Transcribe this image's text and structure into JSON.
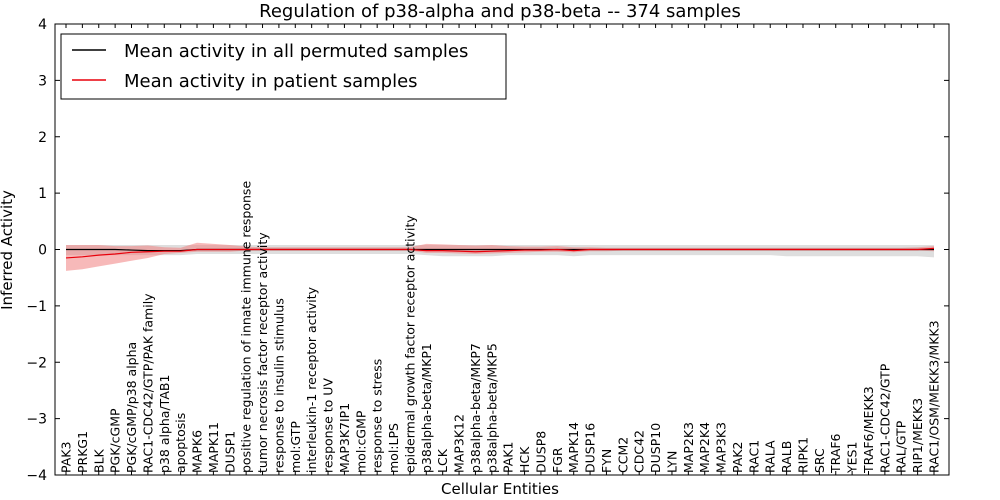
{
  "chart_data": {
    "type": "line",
    "title": "Regulation of p38-alpha and p38-beta -- 374 samples",
    "xlabel": "Cellular Entities",
    "ylabel": "Inferred Activity",
    "ylim": [
      -4,
      4
    ],
    "yticks": [
      -4,
      -3,
      -2,
      -1,
      0,
      1,
      2,
      3,
      4
    ],
    "ytick_labels": [
      "−4",
      "−3",
      "−2",
      "−1",
      "0",
      "1",
      "2",
      "3",
      "4"
    ],
    "grid": false,
    "legend_position": "top-left",
    "categories": [
      "PAK3",
      "PRKG1",
      "BLK",
      "PGK/cGMP",
      "PGK/cGMP/p38 alpha",
      "RAC1-CDC42/GTP/PAK family",
      "p38 alpha/TAB1",
      "apoptosis",
      "MAPK6",
      "MAPK11",
      "DUSP1",
      "positive regulation of innate immune response",
      "tumor necrosis factor receptor activity",
      "response to insulin stimulus",
      "mol:GTP",
      "interleukin-1 receptor activity",
      "response to UV",
      "MAP3K7IP1",
      "mol:cGMP",
      "response to stress",
      "mol:LPS",
      "epidermal growth factor receptor activity",
      "p38alpha-beta/MKP1",
      "LCK",
      "MAP3K12",
      "p38alpha-beta/MKP7",
      "p38alpha-beta/MKP5",
      "PAK1",
      "HCK",
      "DUSP8",
      "FGR",
      "MAPK14",
      "DUSP16",
      "FYN",
      "CCM2",
      "CDC42",
      "DUSP10",
      "LYN",
      "MAP2K3",
      "MAP2K4",
      "MAP3K3",
      "PAK2",
      "RAC1",
      "RALA",
      "RALB",
      "RIPK1",
      "SRC",
      "TRAF6",
      "YES1",
      "TRAF6/MEKK3",
      "RAC1-CDC42/GTP",
      "RAL/GTP",
      "RIP1/MEKK3",
      "RAC1/OSM/MEKK3/MKK3"
    ],
    "series": [
      {
        "name": "Mean activity in all permuted samples",
        "color": "#000000",
        "band_color": "#cccccc",
        "values": [
          0.0,
          0.0,
          0.0,
          0.0,
          -0.01,
          -0.02,
          -0.02,
          -0.02,
          0.0,
          0.0,
          0.0,
          0.0,
          0.0,
          0.0,
          0.0,
          0.0,
          0.0,
          0.0,
          0.0,
          0.0,
          0.0,
          0.0,
          0.0,
          0.0,
          0.0,
          0.0,
          0.0,
          0.0,
          0.0,
          0.0,
          0.0,
          0.0,
          0.0,
          0.0,
          0.0,
          0.0,
          0.0,
          0.0,
          0.0,
          0.0,
          0.0,
          0.0,
          0.0,
          0.0,
          0.0,
          0.0,
          0.0,
          0.0,
          0.0,
          0.0,
          0.0,
          0.0,
          0.0,
          0.0
        ],
        "lower": [
          -0.1,
          -0.1,
          -0.1,
          -0.1,
          -0.1,
          -0.1,
          -0.1,
          -0.1,
          -0.08,
          -0.08,
          -0.08,
          -0.08,
          -0.08,
          -0.08,
          -0.08,
          -0.08,
          -0.08,
          -0.08,
          -0.08,
          -0.08,
          -0.08,
          -0.08,
          -0.1,
          -0.12,
          -0.12,
          -0.12,
          -0.12,
          -0.1,
          -0.1,
          -0.1,
          -0.1,
          -0.12,
          -0.1,
          -0.1,
          -0.1,
          -0.1,
          -0.1,
          -0.1,
          -0.1,
          -0.1,
          -0.1,
          -0.1,
          -0.1,
          -0.1,
          -0.12,
          -0.12,
          -0.12,
          -0.12,
          -0.12,
          -0.12,
          -0.12,
          -0.12,
          -0.12,
          -0.14
        ],
        "upper": [
          0.08,
          0.08,
          0.08,
          0.08,
          0.08,
          0.08,
          0.08,
          0.08,
          0.08,
          0.08,
          0.08,
          0.08,
          0.08,
          0.08,
          0.08,
          0.08,
          0.08,
          0.08,
          0.08,
          0.08,
          0.08,
          0.08,
          0.08,
          0.08,
          0.08,
          0.08,
          0.08,
          0.08,
          0.08,
          0.08,
          0.08,
          0.08,
          0.08,
          0.08,
          0.08,
          0.08,
          0.08,
          0.08,
          0.08,
          0.08,
          0.08,
          0.08,
          0.08,
          0.08,
          0.08,
          0.08,
          0.08,
          0.08,
          0.08,
          0.08,
          0.08,
          0.08,
          0.08,
          0.08
        ]
      },
      {
        "name": "Mean activity in patient samples",
        "color": "#e8000b",
        "band_color": "#f08080",
        "values": [
          -0.15,
          -0.13,
          -0.1,
          -0.08,
          -0.05,
          -0.04,
          -0.03,
          -0.03,
          0.0,
          0.0,
          0.0,
          0.0,
          0.0,
          0.0,
          0.0,
          0.0,
          0.0,
          0.0,
          0.0,
          0.0,
          0.0,
          0.0,
          -0.02,
          -0.02,
          -0.03,
          -0.04,
          -0.03,
          -0.02,
          -0.01,
          -0.01,
          0.0,
          -0.02,
          0.0,
          0.0,
          0.0,
          0.0,
          0.0,
          0.0,
          0.0,
          0.0,
          0.0,
          0.0,
          0.0,
          0.0,
          0.0,
          0.0,
          0.0,
          0.0,
          0.0,
          0.0,
          0.0,
          0.0,
          0.0,
          0.02
        ],
        "lower": [
          -0.38,
          -0.35,
          -0.3,
          -0.25,
          -0.2,
          -0.15,
          -0.08,
          -0.06,
          -0.04,
          -0.04,
          -0.04,
          -0.02,
          -0.02,
          -0.02,
          -0.02,
          -0.02,
          -0.02,
          -0.02,
          -0.02,
          -0.02,
          -0.02,
          -0.02,
          -0.06,
          -0.06,
          -0.07,
          -0.08,
          -0.07,
          -0.06,
          -0.05,
          -0.04,
          -0.04,
          -0.05,
          -0.03,
          -0.03,
          -0.02,
          -0.02,
          -0.02,
          -0.02,
          -0.02,
          -0.02,
          -0.02,
          -0.02,
          -0.02,
          -0.02,
          -0.02,
          -0.02,
          -0.02,
          -0.02,
          -0.02,
          -0.02,
          -0.02,
          -0.02,
          -0.02,
          -0.03
        ],
        "upper": [
          0.08,
          0.08,
          0.08,
          0.06,
          0.06,
          0.07,
          0.04,
          0.03,
          0.12,
          0.1,
          0.08,
          0.05,
          0.04,
          0.04,
          0.04,
          0.04,
          0.04,
          0.04,
          0.04,
          0.04,
          0.04,
          0.04,
          0.1,
          0.09,
          0.08,
          0.07,
          0.08,
          0.06,
          0.05,
          0.05,
          0.06,
          0.04,
          0.04,
          0.03,
          0.03,
          0.03,
          0.03,
          0.03,
          0.03,
          0.03,
          0.03,
          0.03,
          0.03,
          0.03,
          0.03,
          0.03,
          0.03,
          0.03,
          0.03,
          0.03,
          0.03,
          0.03,
          0.04,
          0.06
        ]
      }
    ]
  }
}
